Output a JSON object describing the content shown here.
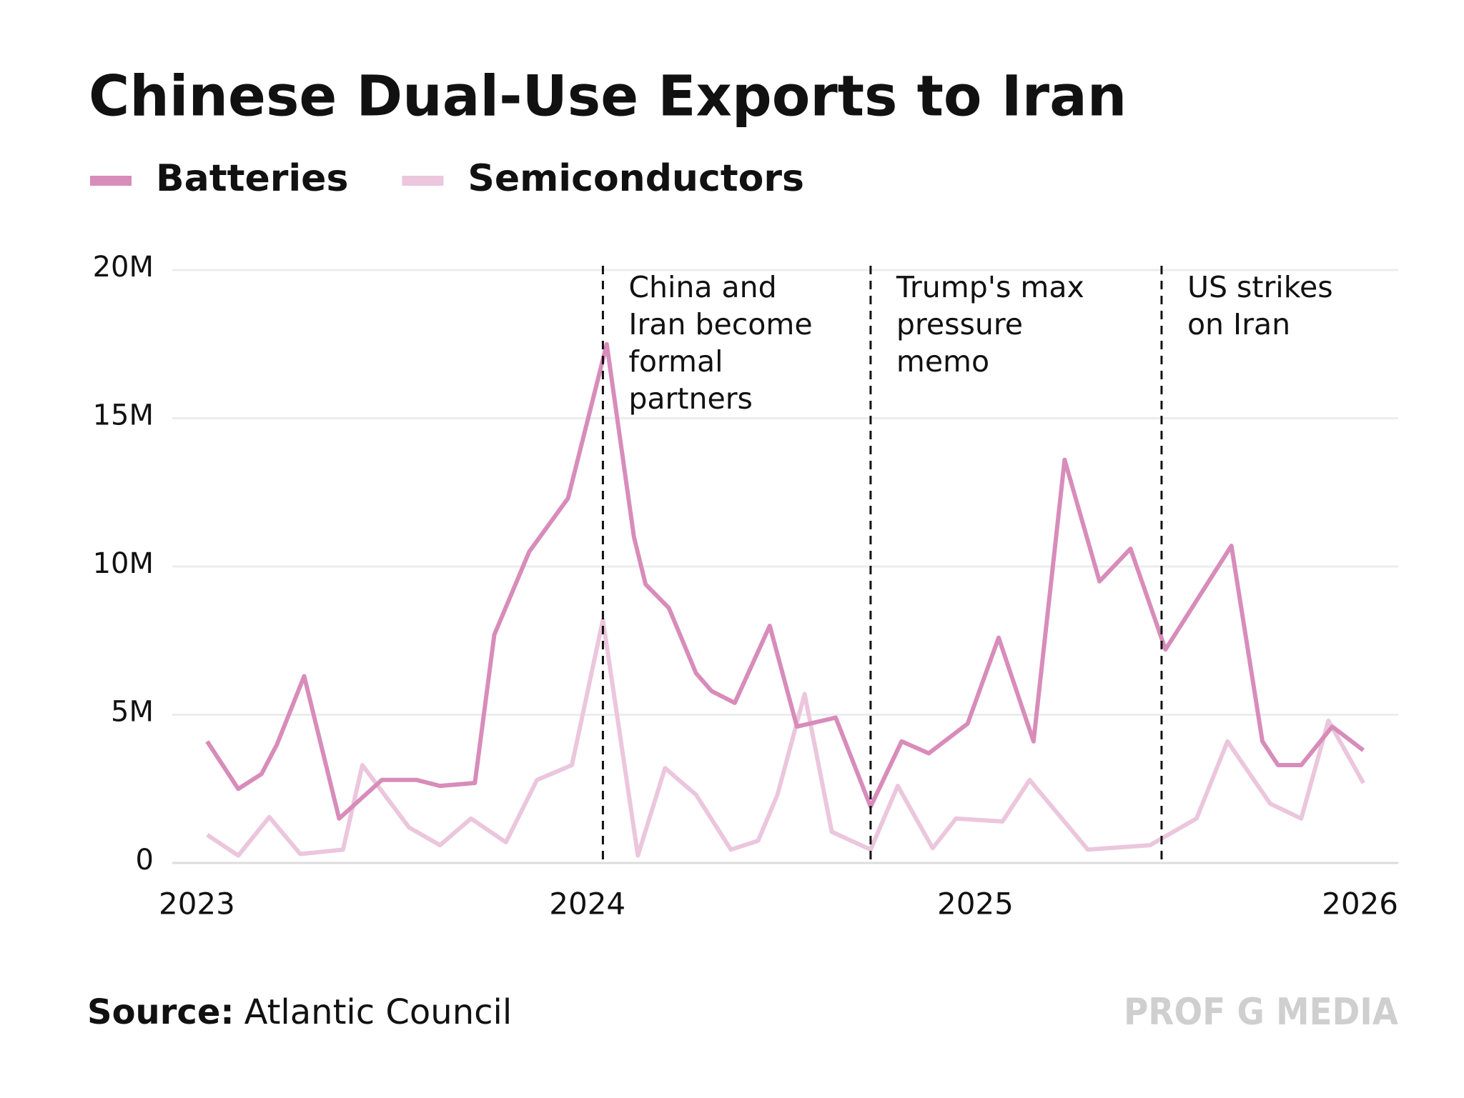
{
  "chart_data": {
    "type": "line",
    "title": "Chinese Dual-Use Exports to Iran",
    "source_label": "Source:",
    "source": "Atlantic Council",
    "watermark": "PROF G MEDIA",
    "xlim": [
      2022.93,
      2026.09
    ],
    "xticks": [
      2023,
      2024,
      2025,
      2026
    ],
    "ylim": [
      0,
      20000000
    ],
    "yticks": [
      {
        "value": 0,
        "label": "0"
      },
      {
        "value": 5000000,
        "label": "5M"
      },
      {
        "value": 10000000,
        "label": "10M"
      },
      {
        "value": 15000000,
        "label": "15M"
      },
      {
        "value": 20000000,
        "label": "20M"
      }
    ],
    "grid": true,
    "legend": "top-left",
    "series": [
      {
        "name": "Batteries",
        "color": "#d88cba",
        "x": [
          2023.02,
          2023.1,
          2023.16,
          2023.2,
          2023.27,
          2023.36,
          2023.47,
          2023.56,
          2023.62,
          2023.71,
          2023.76,
          2023.85,
          2023.95,
          2024.05,
          2024.12,
          2024.15,
          2024.21,
          2024.28,
          2024.32,
          2024.38,
          2024.47,
          2024.54,
          2024.64,
          2024.73,
          2024.81,
          2024.88,
          2024.98,
          2025.06,
          2025.15,
          2025.23,
          2025.32,
          2025.4,
          2025.49,
          2025.66,
          2025.74,
          2025.78,
          2025.84,
          2025.92,
          2026.0
        ],
        "values": [
          4100000,
          2500000,
          3000000,
          4000000,
          6300000,
          1500000,
          2800000,
          2800000,
          2600000,
          2700000,
          7700000,
          10500000,
          12300000,
          17500000,
          11000000,
          9400000,
          8600000,
          6400000,
          5800000,
          5400000,
          8000000,
          4600000,
          4900000,
          1900000,
          4100000,
          3700000,
          4700000,
          7600000,
          4100000,
          13600000,
          9500000,
          10600000,
          7200000,
          10700000,
          4100000,
          3300000,
          3300000,
          4600000,
          3800000
        ]
      },
      {
        "name": "Semiconductors",
        "color": "#ebc6dd",
        "x": [
          2023.02,
          2023.1,
          2023.18,
          2023.26,
          2023.37,
          2023.42,
          2023.54,
          2023.62,
          2023.7,
          2023.79,
          2023.87,
          2023.96,
          2024.04,
          2024.13,
          2024.2,
          2024.28,
          2024.37,
          2024.44,
          2024.49,
          2024.56,
          2024.63,
          2024.73,
          2024.8,
          2024.89,
          2024.95,
          2025.07,
          2025.14,
          2025.29,
          2025.45,
          2025.49,
          2025.57,
          2025.65,
          2025.76,
          2025.84,
          2025.91,
          2026.0
        ],
        "values": [
          950000,
          250000,
          1550000,
          300000,
          450000,
          3300000,
          1200000,
          600000,
          1500000,
          700000,
          2800000,
          3300000,
          8200000,
          250000,
          3200000,
          2300000,
          450000,
          750000,
          2300000,
          5700000,
          1050000,
          450000,
          2600000,
          500000,
          1500000,
          1400000,
          2800000,
          450000,
          600000,
          900000,
          1500000,
          4100000,
          2000000,
          1500000,
          4800000,
          2700000
        ]
      }
    ],
    "annotations": [
      {
        "x": 2024.04,
        "lines": [
          "China and",
          "Iran become",
          "formal",
          "partners"
        ]
      },
      {
        "x": 2024.73,
        "lines": [
          "Trump's max",
          "pressure",
          "memo"
        ]
      },
      {
        "x": 2025.48,
        "lines": [
          "US strikes",
          "on Iran"
        ]
      }
    ]
  }
}
